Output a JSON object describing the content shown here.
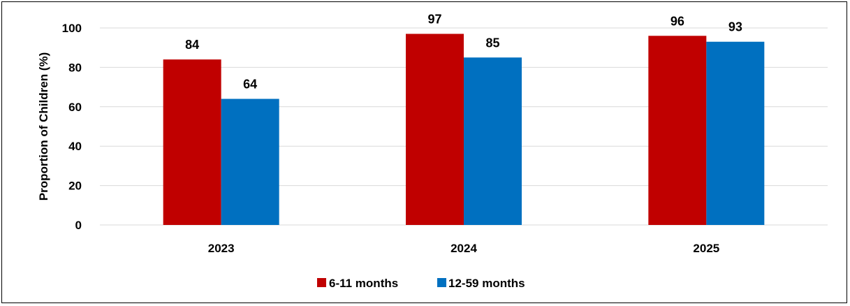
{
  "chart_data": {
    "type": "bar",
    "categories": [
      "2023",
      "2024",
      "2025"
    ],
    "series": [
      {
        "name": "6-11 months",
        "values": [
          84,
          97,
          96
        ],
        "color": "#c00000"
      },
      {
        "name": "12-59 months",
        "values": [
          64,
          85,
          93
        ],
        "color": "#0070c0"
      }
    ],
    "title": "",
    "xlabel": "",
    "ylabel": "Proportion of Children (%)",
    "ylim": [
      0,
      100
    ],
    "yticks": [
      "0",
      "20",
      "40",
      "60",
      "80",
      "100"
    ],
    "grid": true,
    "legend_position": "bottom"
  }
}
